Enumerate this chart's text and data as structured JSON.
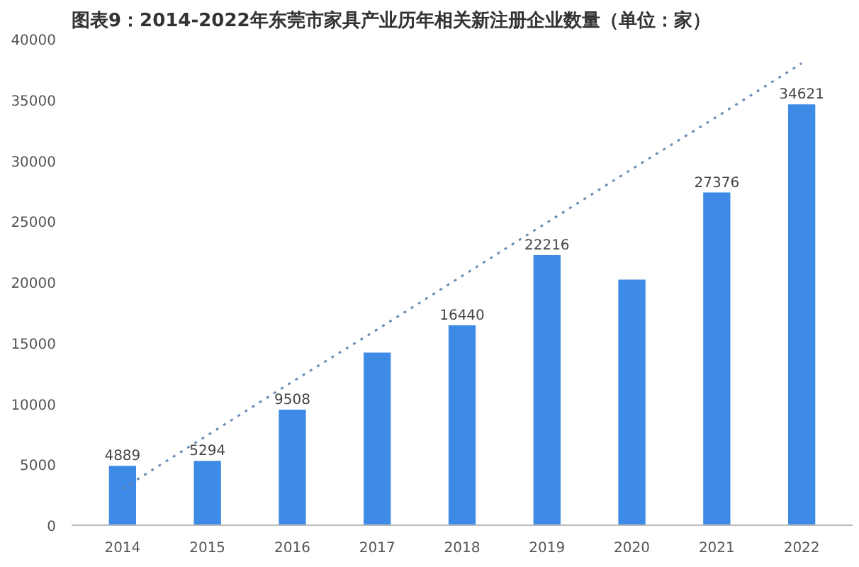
{
  "chart_data": {
    "type": "bar",
    "title": "图表9：2014-2022年东莞市家具产业历年相关新注册企业数量（单位：家）",
    "categories": [
      "2014",
      "2015",
      "2016",
      "2017",
      "2018",
      "2019",
      "2020",
      "2021",
      "2022"
    ],
    "series": [
      {
        "color": "#3d8be6",
        "values": [
          4889,
          5294,
          9508,
          14200,
          16440,
          22216,
          20200,
          27376,
          34621
        ],
        "value_labels": [
          "4889",
          "5294",
          "9508",
          null,
          "16440",
          "22216",
          null,
          "27376",
          "34621"
        ]
      },
      {
        "type": "line",
        "color": "#6a8db5",
        "line_style": "dotted",
        "values": [
          3000,
          7400,
          11800,
          16100,
          20500,
          24900,
          29300,
          33600,
          38000
        ]
      }
    ],
    "ylim": [
      0,
      40000
    ],
    "yticks": [
      0,
      5000,
      10000,
      15000,
      20000,
      25000,
      30000,
      35000,
      40000
    ],
    "grid": false
  }
}
